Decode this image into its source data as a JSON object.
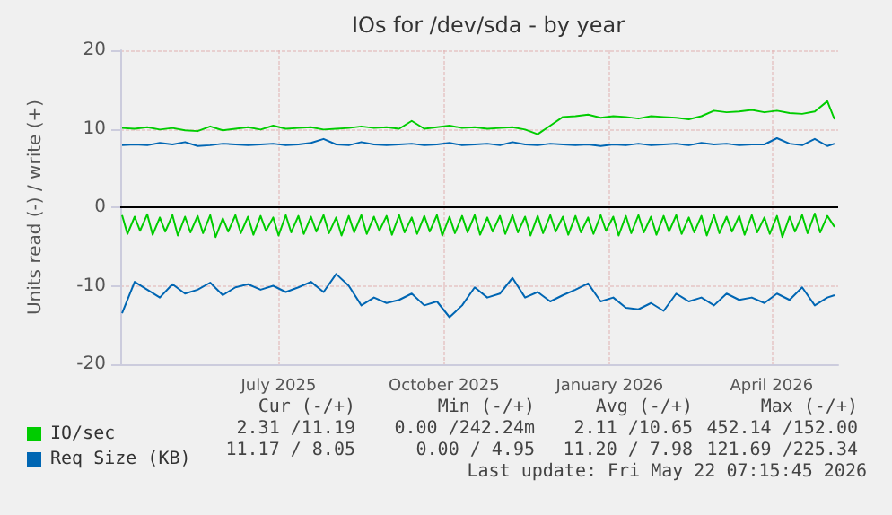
{
  "chart_data": {
    "type": "line",
    "title": "IOs for /dev/sda - by year",
    "ylabel": "Units read (-) / write (+)",
    "x": [
      "2025-04-20",
      "2025-04-27",
      "2025-05-04",
      "2025-05-11",
      "2025-05-18",
      "2025-05-25",
      "2025-06-01",
      "2025-06-08",
      "2025-06-15",
      "2025-06-22",
      "2025-06-29",
      "2025-07-06",
      "2025-07-13",
      "2025-07-20",
      "2025-07-27",
      "2025-08-03",
      "2025-08-10",
      "2025-08-17",
      "2025-08-24",
      "2025-08-31",
      "2025-09-07",
      "2025-09-14",
      "2025-09-21",
      "2025-09-28",
      "2025-10-05",
      "2025-10-12",
      "2025-10-19",
      "2025-10-26",
      "2025-11-02",
      "2025-11-09",
      "2025-11-16",
      "2025-11-23",
      "2025-11-30",
      "2025-12-07",
      "2025-12-14",
      "2025-12-21",
      "2025-12-28",
      "2026-01-04",
      "2026-01-11",
      "2026-01-18",
      "2026-01-25",
      "2026-02-01",
      "2026-02-08",
      "2026-02-15",
      "2026-02-22",
      "2026-03-01",
      "2026-03-08",
      "2026-03-15",
      "2026-03-22",
      "2026-03-29",
      "2026-04-05",
      "2026-04-12",
      "2026-04-19",
      "2026-04-26",
      "2026-05-03",
      "2026-05-10",
      "2026-05-17",
      "2026-05-21"
    ],
    "xlim": [
      "2025-04-19",
      "2026-05-23"
    ],
    "xticks": [
      {
        "value": "2025-07-16",
        "label": "July 2025"
      },
      {
        "value": "2025-10-16",
        "label": "October 2025"
      },
      {
        "value": "2026-01-16",
        "label": "January 2026"
      },
      {
        "value": "2026-04-16",
        "label": "April 2026"
      }
    ],
    "ylim": [
      -20,
      20
    ],
    "yticks": [
      -20,
      -10,
      0,
      10,
      20
    ],
    "grid": true,
    "legend": "bottom left",
    "marker": "none",
    "line_style": "solid",
    "series": [
      {
        "name": "IO/sec",
        "color": "#00cc00",
        "values": [
          10.1,
          10.0,
          10.2,
          9.9,
          10.1,
          9.8,
          9.7,
          10.3,
          9.8,
          10.0,
          10.2,
          9.9,
          10.4,
          10.0,
          10.1,
          10.2,
          9.9,
          10.0,
          10.1,
          10.3,
          10.1,
          10.2,
          10.0,
          11.0,
          10.0,
          10.2,
          10.4,
          10.1,
          10.2,
          10.0,
          10.1,
          10.2,
          9.9,
          9.3,
          10.4,
          11.5,
          11.6,
          11.8,
          11.4,
          11.6,
          11.5,
          11.3,
          11.6,
          11.5,
          11.4,
          11.2,
          11.6,
          12.3,
          12.1,
          12.2,
          12.4,
          12.1,
          12.3,
          12.0,
          11.9,
          12.2,
          13.5,
          11.2
        ]
      },
      {
        "color": "#00cc00",
        "x": [
          "2025-04-20",
          "2025-04-23",
          "2025-04-27",
          "2025-04-30",
          "2025-05-04",
          "2025-05-07",
          "2025-05-11",
          "2025-05-14",
          "2025-05-18",
          "2025-05-21",
          "2025-05-25",
          "2025-05-28",
          "2025-06-01",
          "2025-06-04",
          "2025-06-08",
          "2025-06-11",
          "2025-06-15",
          "2025-06-18",
          "2025-06-22",
          "2025-06-25",
          "2025-06-29",
          "2025-07-02",
          "2025-07-06",
          "2025-07-09",
          "2025-07-13",
          "2025-07-16",
          "2025-07-20",
          "2025-07-23",
          "2025-07-27",
          "2025-07-30",
          "2025-08-03",
          "2025-08-06",
          "2025-08-10",
          "2025-08-13",
          "2025-08-17",
          "2025-08-20",
          "2025-08-24",
          "2025-08-27",
          "2025-08-31",
          "2025-09-03",
          "2025-09-07",
          "2025-09-10",
          "2025-09-14",
          "2025-09-17",
          "2025-09-21",
          "2025-09-24",
          "2025-09-28",
          "2025-10-01",
          "2025-10-05",
          "2025-10-08",
          "2025-10-12",
          "2025-10-15",
          "2025-10-19",
          "2025-10-22",
          "2025-10-26",
          "2025-10-29",
          "2025-11-02",
          "2025-11-05",
          "2025-11-09",
          "2025-11-12",
          "2025-11-16",
          "2025-11-19",
          "2025-11-23",
          "2025-11-26",
          "2025-11-30",
          "2025-12-03",
          "2025-12-07",
          "2025-12-10",
          "2025-12-14",
          "2025-12-17",
          "2025-12-21",
          "2025-12-24",
          "2025-12-28",
          "2025-12-31",
          "2026-01-04",
          "2026-01-07",
          "2026-01-11",
          "2026-01-14",
          "2026-01-18",
          "2026-01-21",
          "2026-01-25",
          "2026-01-28",
          "2026-02-01",
          "2026-02-04",
          "2026-02-08",
          "2026-02-11",
          "2026-02-15",
          "2026-02-18",
          "2026-02-22",
          "2026-02-25",
          "2026-03-01",
          "2026-03-04",
          "2026-03-08",
          "2026-03-11",
          "2026-03-15",
          "2026-03-18",
          "2026-03-22",
          "2026-03-25",
          "2026-03-29",
          "2026-04-01",
          "2026-04-05",
          "2026-04-08",
          "2026-04-12",
          "2026-04-15",
          "2026-04-19",
          "2026-04-22",
          "2026-04-26",
          "2026-04-29",
          "2026-05-03",
          "2026-05-06",
          "2026-05-10",
          "2026-05-13",
          "2026-05-17",
          "2026-05-21"
        ],
        "values": [
          -1.0,
          -3.4,
          -1.2,
          -3.0,
          -0.9,
          -3.5,
          -1.3,
          -3.1,
          -1.0,
          -3.6,
          -1.2,
          -3.2,
          -1.1,
          -3.3,
          -1.0,
          -3.8,
          -1.4,
          -3.1,
          -1.0,
          -3.3,
          -1.2,
          -3.5,
          -1.1,
          -3.0,
          -1.3,
          -3.6,
          -1.0,
          -3.2,
          -1.1,
          -3.4,
          -1.2,
          -3.1,
          -1.0,
          -3.3,
          -1.3,
          -3.6,
          -1.1,
          -3.2,
          -1.0,
          -3.4,
          -1.2,
          -3.0,
          -1.1,
          -3.5,
          -1.0,
          -3.2,
          -1.3,
          -3.4,
          -1.1,
          -3.1,
          -1.0,
          -3.6,
          -1.2,
          -3.3,
          -1.1,
          -3.2,
          -1.0,
          -3.5,
          -1.3,
          -3.1,
          -1.1,
          -3.4,
          -1.0,
          -3.2,
          -1.2,
          -3.6,
          -1.1,
          -3.3,
          -1.0,
          -3.1,
          -1.2,
          -3.5,
          -1.1,
          -3.2,
          -1.3,
          -3.4,
          -1.0,
          -3.0,
          -1.2,
          -3.6,
          -1.1,
          -3.3,
          -1.0,
          -3.2,
          -1.2,
          -3.5,
          -1.1,
          -3.1,
          -1.0,
          -3.4,
          -1.3,
          -3.2,
          -1.1,
          -3.6,
          -1.0,
          -3.3,
          -1.2,
          -3.1,
          -1.1,
          -3.5,
          -1.0,
          -3.2,
          -1.3,
          -3.4,
          -1.1,
          -3.8,
          -1.2,
          -3.1,
          -1.0,
          -3.3,
          -0.8,
          -3.2,
          -1.1,
          -2.5
        ]
      },
      {
        "name": "Req Size (KB)",
        "color": "#0066b3",
        "values": [
          7.9,
          8.0,
          7.9,
          8.2,
          8.0,
          8.3,
          7.8,
          7.9,
          8.1,
          8.0,
          7.9,
          8.0,
          8.1,
          7.9,
          8.0,
          8.2,
          8.7,
          8.0,
          7.9,
          8.3,
          8.0,
          7.9,
          8.0,
          8.1,
          7.9,
          8.0,
          8.2,
          7.9,
          8.0,
          8.1,
          7.9,
          8.3,
          8.0,
          7.9,
          8.1,
          8.0,
          7.9,
          8.0,
          7.8,
          8.0,
          7.9,
          8.1,
          7.9,
          8.0,
          8.1,
          7.9,
          8.2,
          8.0,
          8.1,
          7.9,
          8.0,
          8.0,
          8.8,
          8.1,
          7.9,
          8.7,
          7.8,
          8.1
        ]
      },
      {
        "color": "#0066b3",
        "values": [
          -13.5,
          -9.5,
          -10.5,
          -11.5,
          -9.8,
          -11.0,
          -10.5,
          -9.6,
          -11.2,
          -10.2,
          -9.8,
          -10.5,
          -10.0,
          -10.8,
          -10.2,
          -9.5,
          -10.8,
          -8.5,
          -10.0,
          -12.5,
          -11.5,
          -12.2,
          -11.8,
          -11.0,
          -12.5,
          -12.0,
          -14.0,
          -12.5,
          -10.2,
          -11.5,
          -11.0,
          -9.0,
          -11.5,
          -10.8,
          -12.0,
          -11.2,
          -10.5,
          -9.7,
          -12.0,
          -11.5,
          -12.8,
          -13.0,
          -12.2,
          -13.2,
          -11.0,
          -12.0,
          -11.5,
          -12.5,
          -11.0,
          -11.8,
          -11.5,
          -12.2,
          -11.0,
          -11.8,
          -10.2,
          -12.5,
          -11.5,
          -11.2
        ]
      }
    ],
    "ref_lines": [
      {
        "axis": "y",
        "value": 0,
        "color": "#000000"
      }
    ],
    "annotations": [
      "Cur (-/+)",
      "Min (-/+)",
      "Avg (-/+)",
      "Max (-/+)",
      "2.31 /11.19",
      "0.00 /242.24m",
      "2.11 /10.65",
      "452.14 /152.00",
      "11.17 / 8.05",
      "0.00 / 4.95",
      "11.20 / 7.98",
      "121.69 /225.34",
      "Last update: Fri May 22 07:15:45 2026"
    ]
  }
}
